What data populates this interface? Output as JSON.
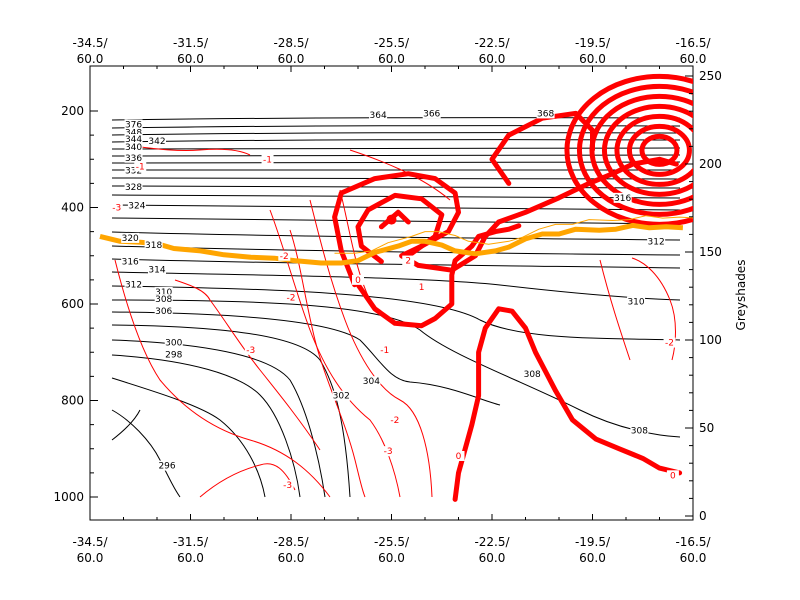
{
  "chart_data": {
    "type": "contour",
    "xlabel": "",
    "ylabel": "",
    "y2label": "Greyshades",
    "ylim": [
      1050,
      100
    ],
    "y2lim": [
      0,
      260
    ],
    "x_tick_labels": [
      {
        "lon": "-34.5/",
        "lat": "60.0"
      },
      {
        "lon": "-31.5/",
        "lat": "60.0"
      },
      {
        "lon": "-28.5/",
        "lat": "60.0"
      },
      {
        "lon": "-25.5/",
        "lat": "60.0"
      },
      {
        "lon": "-22.5/",
        "lat": "60.0"
      },
      {
        "lon": "-19.5/",
        "lat": "60.0"
      },
      {
        "lon": "-16.5/",
        "lat": "60.0"
      }
    ],
    "y_ticks": [
      200,
      400,
      600,
      800,
      1000
    ],
    "y2_ticks": [
      0,
      50,
      100,
      150,
      200,
      250
    ],
    "theta_contour_labels": [
      "296",
      "298",
      "300",
      "302",
      "304",
      "306",
      "308",
      "310",
      "312",
      "314",
      "316",
      "318",
      "320",
      "324",
      "328",
      "332",
      "336",
      "340",
      "344",
      "348",
      "352",
      "356",
      "364",
      "366",
      "368"
    ],
    "theta_labels_drawn": [
      {
        "text": "364",
        "x": -25.9,
        "y": 208
      },
      {
        "text": "366",
        "x": -24.3,
        "y": 205
      },
      {
        "text": "368",
        "x": -20.9,
        "y": 205
      },
      {
        "text": "376",
        "x": -33.2,
        "y": 228
      },
      {
        "text": "348",
        "x": -33.2,
        "y": 245
      },
      {
        "text": "344",
        "x": -33.2,
        "y": 258
      },
      {
        "text": "342",
        "x": -32.5,
        "y": 262
      },
      {
        "text": "340",
        "x": -33.2,
        "y": 275
      },
      {
        "text": "336",
        "x": -33.2,
        "y": 297
      },
      {
        "text": "332",
        "x": -33.2,
        "y": 323
      },
      {
        "text": "328",
        "x": -33.2,
        "y": 358
      },
      {
        "text": "324",
        "x": -33.1,
        "y": 396
      },
      {
        "text": "320",
        "x": -33.3,
        "y": 463
      },
      {
        "text": "318",
        "x": -32.6,
        "y": 478
      },
      {
        "text": "316",
        "x": -33.3,
        "y": 512
      },
      {
        "text": "314",
        "x": -32.5,
        "y": 528
      },
      {
        "text": "312",
        "x": -33.2,
        "y": 560
      },
      {
        "text": "310",
        "x": -32.3,
        "y": 575
      },
      {
        "text": "308",
        "x": -32.3,
        "y": 590
      },
      {
        "text": "306",
        "x": -32.3,
        "y": 615
      },
      {
        "text": "300",
        "x": -32.0,
        "y": 680
      },
      {
        "text": "298",
        "x": -32.0,
        "y": 705
      },
      {
        "text": "304",
        "x": -26.1,
        "y": 760
      },
      {
        "text": "302",
        "x": -27.0,
        "y": 790
      },
      {
        "text": "296",
        "x": -32.2,
        "y": 935
      },
      {
        "text": "310",
        "x": -18.2,
        "y": 595
      },
      {
        "text": "312",
        "x": -17.6,
        "y": 470
      },
      {
        "text": "316",
        "x": -18.6,
        "y": 380
      },
      {
        "text": "308",
        "x": -21.3,
        "y": 745
      },
      {
        "text": "308",
        "x": -18.1,
        "y": 862
      }
    ],
    "pv_labels_drawn": [
      {
        "text": "1",
        "x": -24.6,
        "y": 565
      },
      {
        "text": "2",
        "x": -25.0,
        "y": 510
      },
      {
        "text": "0",
        "x": -26.5,
        "y": 550
      },
      {
        "text": "0",
        "x": -23.5,
        "y": 915
      },
      {
        "text": "0",
        "x": -17.1,
        "y": 955
      },
      {
        "text": "-1",
        "x": -33.0,
        "y": 315
      },
      {
        "text": "-2",
        "x": -28.5,
        "y": 587
      },
      {
        "text": "-3",
        "x": -29.7,
        "y": 695
      },
      {
        "text": "-2",
        "x": -28.7,
        "y": 500
      },
      {
        "text": "-3",
        "x": -28.6,
        "y": 975
      },
      {
        "text": "-2",
        "x": -25.4,
        "y": 840
      },
      {
        "text": "-3",
        "x": -25.6,
        "y": 905
      },
      {
        "text": "-1",
        "x": -25.7,
        "y": 695
      },
      {
        "text": "-2",
        "x": -17.2,
        "y": 680
      },
      {
        "text": "-1",
        "x": -29.2,
        "y": 300
      },
      {
        "text": "-3",
        "x": -33.7,
        "y": 400
      }
    ],
    "pv_thick_contours": [
      {
        "label": "0",
        "points": [
          [
            -26.6,
            560
          ],
          [
            -27.0,
            490
          ],
          [
            -27.2,
            420
          ],
          [
            -27.0,
            370
          ],
          [
            -26.0,
            340
          ],
          [
            -25.0,
            330
          ],
          [
            -24.2,
            340
          ],
          [
            -23.6,
            370
          ],
          [
            -23.5,
            410
          ],
          [
            -23.8,
            450
          ],
          [
            -24.6,
            480
          ],
          [
            -25.2,
            500
          ],
          [
            -24.7,
            520
          ],
          [
            -23.7,
            530
          ],
          [
            -23.0,
            500
          ],
          [
            -22.7,
            460
          ],
          [
            -22.3,
            430
          ],
          [
            -21.5,
            410
          ],
          [
            -20.5,
            380
          ],
          [
            -19.6,
            350
          ],
          [
            -18.9,
            330
          ],
          [
            -18.3,
            310
          ],
          [
            -17.5,
            300
          ],
          [
            -17.0,
            310
          ]
        ]
      },
      {
        "label": "1",
        "points": [
          [
            -25.8,
            512
          ],
          [
            -26.4,
            480
          ],
          [
            -26.5,
            440
          ],
          [
            -26.2,
            405
          ],
          [
            -25.4,
            375
          ],
          [
            -24.6,
            382
          ],
          [
            -24.0,
            415
          ],
          [
            -24.2,
            460
          ],
          [
            -25.0,
            500
          ]
        ]
      },
      {
        "label": "2",
        "points": [
          [
            -25.8,
            440
          ],
          [
            -25.3,
            410
          ],
          [
            -25.0,
            430
          ]
        ]
      },
      {
        "label": "3",
        "points": [
          [
            -22.0,
            350
          ],
          [
            -22.5,
            300
          ],
          [
            -22.0,
            250
          ],
          [
            -21.0,
            215
          ],
          [
            -20.0,
            205
          ],
          [
            -19.5,
            240
          ],
          [
            -19.5,
            280
          ]
        ]
      },
      {
        "label": "0",
        "points": [
          [
            -26.5,
            560
          ],
          [
            -26.0,
            610
          ],
          [
            -25.4,
            640
          ],
          [
            -24.6,
            645
          ],
          [
            -24.2,
            630
          ],
          [
            -23.7,
            600
          ],
          [
            -23.7,
            540
          ],
          [
            -23.6,
            510
          ],
          [
            -23.1,
            480
          ],
          [
            -22.9,
            460
          ],
          [
            -22.4,
            450
          ],
          [
            -22.0,
            445
          ],
          [
            -21.7,
            438
          ]
        ]
      },
      {
        "label": "0",
        "points": [
          [
            -23.6,
            1005
          ],
          [
            -23.5,
            950
          ],
          [
            -23.3,
            900
          ],
          [
            -23.1,
            850
          ],
          [
            -22.9,
            790
          ],
          [
            -22.9,
            700
          ],
          [
            -22.7,
            650
          ],
          [
            -22.3,
            610
          ],
          [
            -21.9,
            615
          ],
          [
            -21.5,
            650
          ],
          [
            -21.2,
            700
          ],
          [
            -20.9,
            740
          ],
          [
            -20.6,
            780
          ],
          [
            -20.1,
            840
          ],
          [
            -19.4,
            880
          ],
          [
            -18.7,
            900
          ],
          [
            -18.0,
            920
          ],
          [
            -17.5,
            940
          ],
          [
            -16.9,
            950
          ]
        ]
      }
    ],
    "tropopause": [
      [
        -34.2,
        460
      ],
      [
        -33.6,
        470
      ],
      [
        -33.0,
        472
      ],
      [
        -32.5,
        475
      ],
      [
        -32.0,
        485
      ],
      [
        -31.2,
        490
      ],
      [
        -30.5,
        498
      ],
      [
        -29.7,
        503
      ],
      [
        -29.0,
        505
      ],
      [
        -28.4,
        510
      ],
      [
        -27.6,
        515
      ],
      [
        -27.0,
        515
      ],
      [
        -26.5,
        510
      ],
      [
        -26.0,
        493
      ],
      [
        -25.3,
        480
      ],
      [
        -24.9,
        470
      ],
      [
        -24.5,
        470
      ],
      [
        -24.0,
        478
      ],
      [
        -23.6,
        490
      ],
      [
        -23.0,
        496
      ],
      [
        -22.4,
        490
      ],
      [
        -22.0,
        482
      ],
      [
        -21.5,
        465
      ],
      [
        -21.0,
        455
      ],
      [
        -20.5,
        455
      ],
      [
        -20.0,
        445
      ],
      [
        -19.3,
        447
      ],
      [
        -18.8,
        445
      ],
      [
        -18.3,
        437
      ],
      [
        -17.8,
        442
      ],
      [
        -17.3,
        440
      ],
      [
        -16.8,
        442
      ]
    ]
  }
}
